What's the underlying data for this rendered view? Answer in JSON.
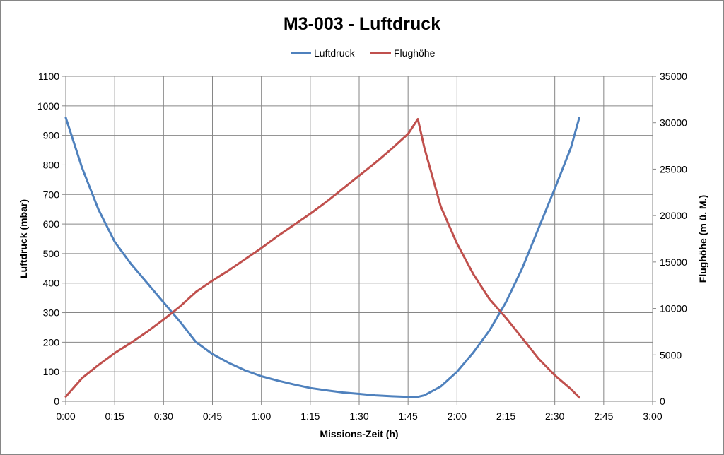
{
  "chart_data": {
    "type": "line",
    "title": "M3-003 - Luftdruck",
    "xlabel": "Missions-Zeit (h)",
    "ylabel": "Luftdruck (mbar)",
    "y2label": "Flughöhe (m ü. M.)",
    "xlim": [
      0,
      180
    ],
    "ylim": [
      0,
      1100
    ],
    "y2lim": [
      0,
      35000
    ],
    "x_tick_values": [
      0,
      15,
      30,
      45,
      60,
      75,
      90,
      105,
      120,
      135,
      150,
      165,
      180
    ],
    "x_ticks": [
      "0:00",
      "0:15",
      "0:30",
      "0:45",
      "1:00",
      "1:15",
      "1:30",
      "1:45",
      "2:00",
      "2:15",
      "2:30",
      "2:45",
      "3:00"
    ],
    "y_ticks": [
      "0",
      "100",
      "200",
      "300",
      "400",
      "500",
      "600",
      "700",
      "800",
      "900",
      "1000",
      "1100"
    ],
    "y2_ticks": [
      "0",
      "5000",
      "10000",
      "15000",
      "20000",
      "25000",
      "30000",
      "35000"
    ],
    "grid": true,
    "legend_position": "top-center",
    "series": [
      {
        "name": "Luftdruck",
        "axis": "left",
        "color": "#4F81BD",
        "x": [
          0,
          5,
          10,
          15,
          20,
          25,
          30,
          35,
          40,
          45,
          50,
          55,
          60,
          65,
          70,
          75,
          80,
          85,
          90,
          95,
          100,
          105,
          108,
          110,
          115,
          120,
          125,
          130,
          135,
          140,
          145,
          150,
          155,
          157.5
        ],
        "y": [
          960,
          790,
          650,
          540,
          465,
          400,
          335,
          270,
          200,
          160,
          130,
          105,
          85,
          70,
          57,
          45,
          37,
          30,
          25,
          20,
          17,
          15,
          15,
          20,
          50,
          100,
          165,
          240,
          335,
          450,
          585,
          720,
          860,
          960
        ]
      },
      {
        "name": "Flughöhe",
        "axis": "right",
        "color": "#C0504D",
        "x": [
          0,
          5,
          10,
          15,
          20,
          25,
          30,
          35,
          40,
          45,
          50,
          55,
          60,
          65,
          70,
          75,
          80,
          85,
          90,
          95,
          100,
          105,
          108,
          110,
          115,
          120,
          125,
          130,
          135,
          140,
          145,
          150,
          155,
          157.5
        ],
        "y": [
          500,
          2500,
          3900,
          5200,
          6300,
          7500,
          8800,
          10200,
          11800,
          13000,
          14100,
          15300,
          16500,
          17800,
          19000,
          20200,
          21500,
          22900,
          24300,
          25700,
          27200,
          28800,
          30400,
          27300,
          21000,
          17000,
          13700,
          11000,
          9000,
          6800,
          4600,
          2800,
          1300,
          400
        ]
      }
    ]
  }
}
